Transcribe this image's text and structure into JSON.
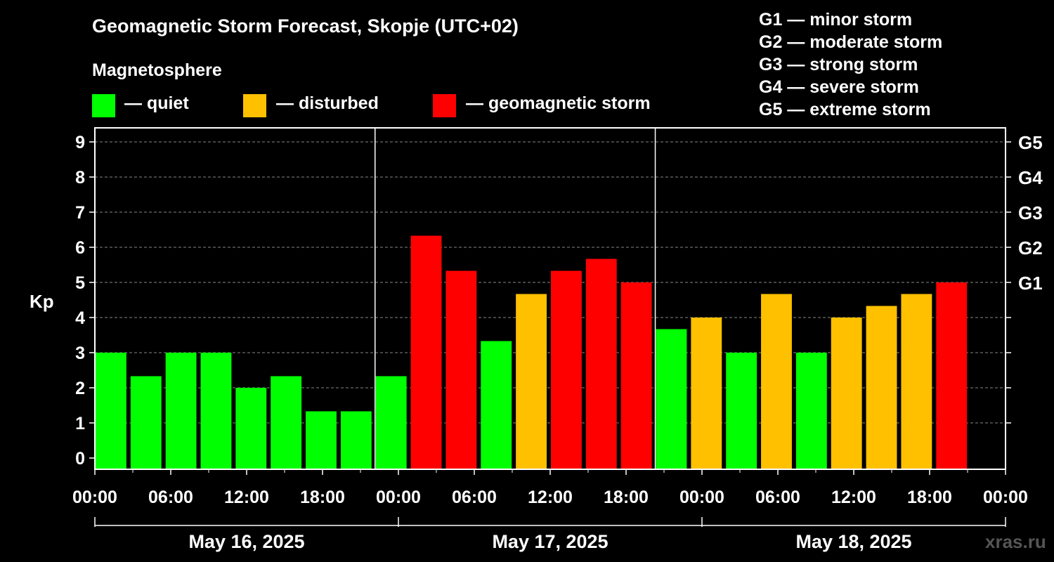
{
  "header": {
    "title": "Geomagnetic Storm Forecast, Skopje (UTC+02)",
    "magnetosphere_label": "Magnetosphere"
  },
  "legend": [
    {
      "label": "— quiet",
      "color": "#00ff00"
    },
    {
      "label": "— disturbed",
      "color": "#ffc000"
    },
    {
      "label": "— geomagnetic storm",
      "color": "#ff0000"
    }
  ],
  "storm_levels": [
    "G1 — minor storm",
    "G2 — moderate storm",
    "G3 — strong storm",
    "G4 — severe storm",
    "G5 — extreme storm"
  ],
  "watermark": "xras.ru",
  "chart_data": {
    "type": "bar",
    "ylabel": "Kp",
    "ylim": [
      0,
      9
    ],
    "y_ticks": [
      0,
      1,
      2,
      3,
      4,
      5,
      6,
      7,
      8,
      9
    ],
    "right_axis_labels": [
      {
        "kp": 5,
        "label": "G1"
      },
      {
        "kp": 6,
        "label": "G2"
      },
      {
        "kp": 7,
        "label": "G3"
      },
      {
        "kp": 8,
        "label": "G4"
      },
      {
        "kp": 9,
        "label": "G5"
      }
    ],
    "x_tick_labels": [
      "00:00",
      "06:00",
      "12:00",
      "18:00",
      "00:00",
      "06:00",
      "12:00",
      "18:00",
      "00:00",
      "06:00",
      "12:00",
      "18:00",
      "00:00"
    ],
    "days": [
      "May 16, 2025",
      "May 17, 2025",
      "May 18, 2025"
    ],
    "interval_hours": 3,
    "grid": "horizontal dashed",
    "colors": {
      "quiet": "#00ff00",
      "disturbed": "#ffc000",
      "storm": "#ff0000"
    },
    "values": [
      3.0,
      2.33,
      3.0,
      3.0,
      2.0,
      2.33,
      1.33,
      1.33,
      2.33,
      6.33,
      5.33,
      3.33,
      4.67,
      5.33,
      5.67,
      5.0,
      3.67,
      4.0,
      3.0,
      4.67,
      3.0,
      4.0,
      4.33,
      4.67,
      5.0
    ],
    "categories": [
      "quiet",
      "quiet",
      "quiet",
      "quiet",
      "quiet",
      "quiet",
      "quiet",
      "quiet",
      "quiet",
      "storm",
      "storm",
      "quiet",
      "disturbed",
      "storm",
      "storm",
      "storm",
      "quiet",
      "disturbed",
      "quiet",
      "disturbed",
      "quiet",
      "disturbed",
      "disturbed",
      "disturbed",
      "storm"
    ]
  }
}
